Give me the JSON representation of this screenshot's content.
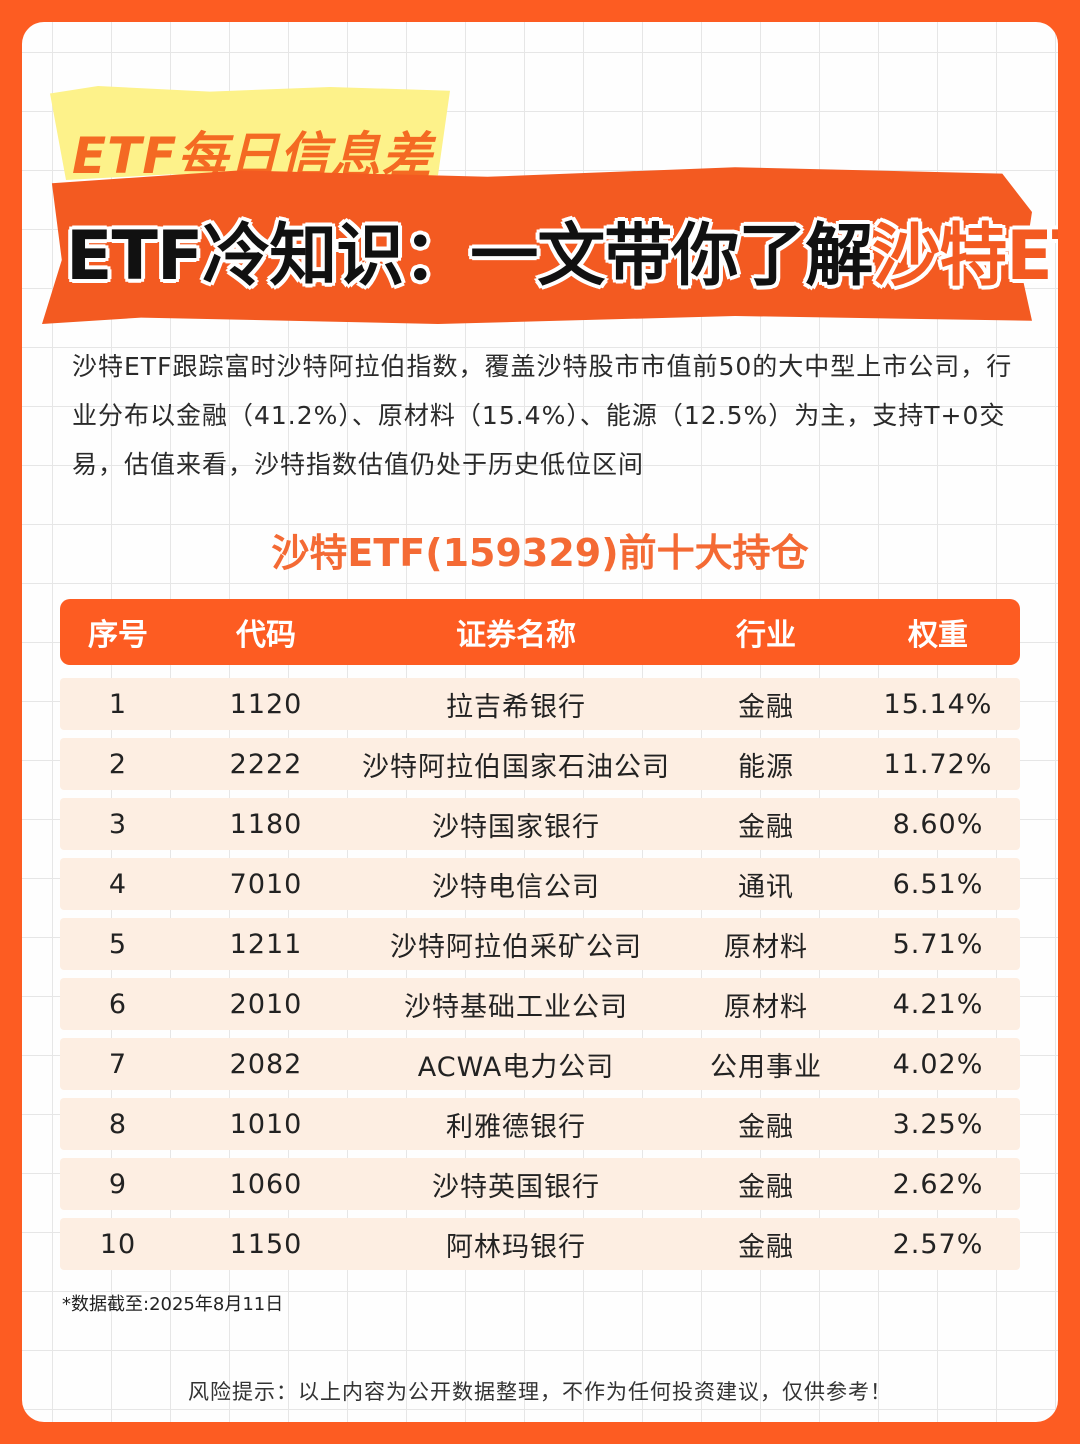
{
  "tag": "ETF每日信息差",
  "headline": {
    "prefix": "ETF冷知识：一文带你了解",
    "highlight": "沙特ETF"
  },
  "intro": "沙特ETF跟踪富时沙特阿拉伯指数，覆盖沙特股市市值前50的大中型上市公司，行业分布以金融（41.2%）、原材料（15.4%）、能源（12.5%）为主，支持T+0交易，估值来看，沙特指数估值仍处于历史低位区间",
  "table": {
    "title": "沙特ETF(159329)前十大持仓",
    "headers": [
      "序号",
      "代码",
      "证券名称",
      "行业",
      "权重"
    ],
    "rows": [
      [
        "1",
        "1120",
        "拉吉希银行",
        "金融",
        "15.14%"
      ],
      [
        "2",
        "2222",
        "沙特阿拉伯国家石油公司",
        "能源",
        "11.72%"
      ],
      [
        "3",
        "1180",
        "沙特国家银行",
        "金融",
        "8.60%"
      ],
      [
        "4",
        "7010",
        "沙特电信公司",
        "通讯",
        "6.51%"
      ],
      [
        "5",
        "1211",
        "沙特阿拉伯采矿公司",
        "原材料",
        "5.71%"
      ],
      [
        "6",
        "2010",
        "沙特基础工业公司",
        "原材料",
        "4.21%"
      ],
      [
        "7",
        "2082",
        "ACWA电力公司",
        "公用事业",
        "4.02%"
      ],
      [
        "8",
        "1010",
        "利雅德银行",
        "金融",
        "3.25%"
      ],
      [
        "9",
        "1060",
        "沙特英国银行",
        "金融",
        "2.62%"
      ],
      [
        "10",
        "1150",
        "阿林玛银行",
        "金融",
        "2.57%"
      ]
    ]
  },
  "footnote": "*数据截至:2025年8月11日",
  "risk": "风险提示：以上内容为公开数据整理，不作为任何投资建议，仅供参考！",
  "colors": {
    "accent": "#fd5c22",
    "tag_bg": "#fdf28a",
    "row_bg": "#fdeee2"
  }
}
